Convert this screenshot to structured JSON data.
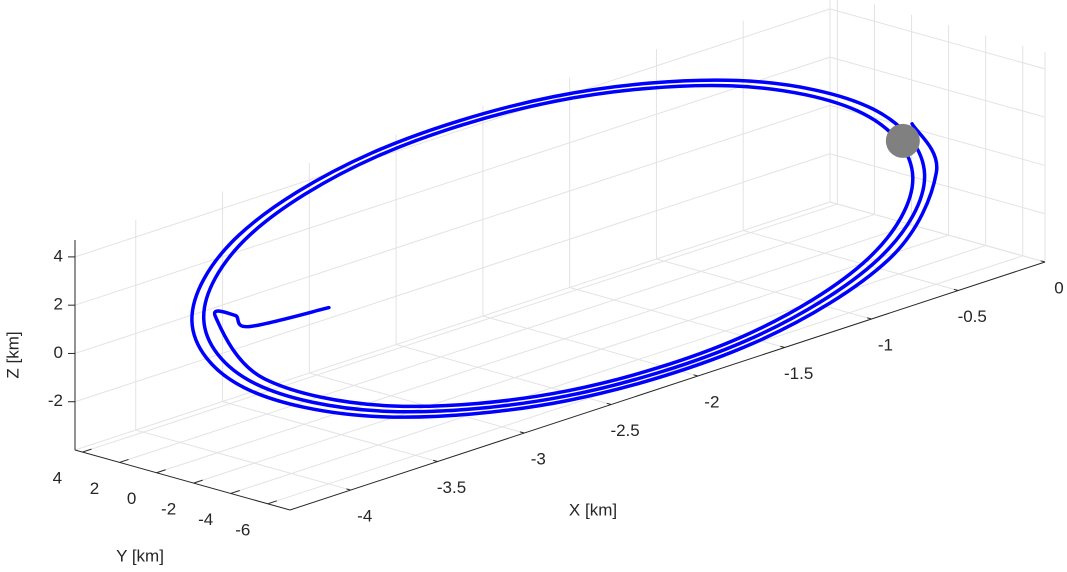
{
  "chart_data": {
    "type": "line3d",
    "xlabel": "X [km]",
    "ylabel": "Y [km]",
    "zlabel": "Z [km]",
    "xlim": [
      -4.35,
      0
    ],
    "ylim": [
      -7.2,
      4.4
    ],
    "zlim": [
      -4,
      4.7
    ],
    "xticks": [
      -4,
      -3.5,
      -3,
      -2.5,
      -2,
      -1.5,
      -1,
      -0.5,
      0
    ],
    "yticks": [
      -6,
      -4,
      -2,
      0,
      2,
      4
    ],
    "zticks": [
      -2,
      0,
      2,
      4
    ],
    "grid": true,
    "series": [
      {
        "color": "#0000ff",
        "x": [
          -3.25,
          -3.71,
          -3.79,
          -4.024,
          -4.033,
          -3.545,
          -2.687,
          -1.687,
          -0.815,
          -0.303,
          -0.293,
          -0.789,
          -1.663,
          -2.679,
          -3.566,
          -4.086,
          -4.096,
          -3.592,
          -2.704,
          -1.67,
          -0.769,
          -0.24,
          -0.23,
          -0.743,
          -1.646,
          -2.696,
          -3.612,
          -4.149,
          -4.159,
          -3.638,
          -2.721,
          -1.654,
          -0.723,
          -0.177,
          -0.107
        ],
        "y": [
          1,
          1,
          1,
          -0.12,
          -2.839,
          -5.213,
          -6.603,
          -6.629,
          -5.278,
          -2.904,
          -0.139,
          2.276,
          3.689,
          3.716,
          2.341,
          -0.073,
          -2.884,
          -5.338,
          -6.775,
          -6.802,
          -5.404,
          -2.951,
          -0.093,
          2.401,
          3.861,
          3.888,
          2.468,
          -0.026,
          -2.93,
          -5.464,
          -6.947,
          -6.974,
          -5.532,
          -2.997,
          -1.029
        ],
        "z": [
          0.03,
          0.33,
          0.98,
          1.734,
          -0.241,
          -2.017,
          -3.119,
          -3.244,
          -2.354,
          -0.684,
          1.324,
          3.13,
          4.25,
          4.378,
          3.473,
          1.775,
          -0.267,
          -2.103,
          -3.242,
          -3.371,
          -2.451,
          -0.725,
          1.35,
          3.216,
          4.374,
          4.505,
          3.57,
          1.815,
          -0.294,
          -2.189,
          -3.365,
          -3.499,
          -2.549,
          -0.766,
          0.657
        ]
      }
    ],
    "sphere": {
      "x": -0.157,
      "y": -1,
      "z": 0.06,
      "color": "#808080"
    }
  }
}
